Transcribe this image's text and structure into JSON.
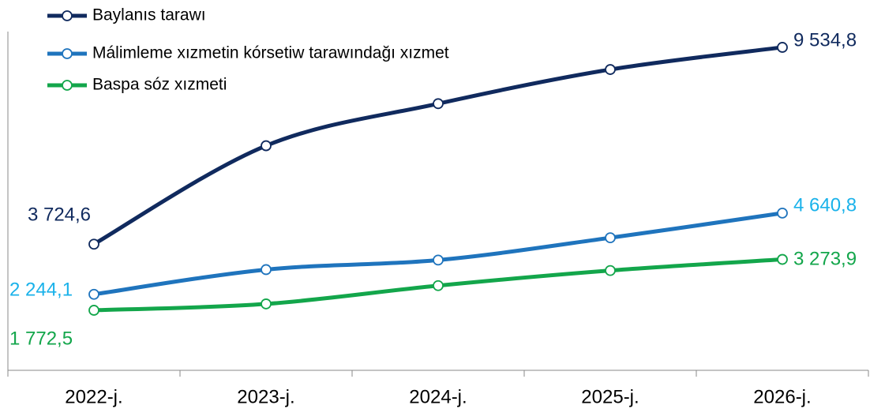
{
  "chart_data": {
    "type": "line",
    "categories": [
      "2022-j.",
      "2023-j.",
      "2024-j.",
      "2025-j.",
      "2026-j."
    ],
    "ylim": [
      0,
      10000
    ],
    "series": [
      {
        "name": "Baylanıs tarawı",
        "color": "#102a5e",
        "label_color": "#102a5e",
        "values": [
          3724.6,
          6630,
          7872,
          8880,
          9534.8
        ],
        "value_labels": [
          "3 724,6",
          null,
          null,
          null,
          "9 534,8"
        ]
      },
      {
        "name": "Málimleme xızmetin kórsetiw tarawındağı xızmet",
        "color": "#1f74bd",
        "label_color": "#1ab2ea",
        "values": [
          2244.1,
          2973,
          3255,
          3913,
          4640.8
        ],
        "value_labels": [
          "2 244,1",
          null,
          null,
          null,
          "4 640,8"
        ]
      },
      {
        "name": "Baspa sóz xızmeti",
        "color": "#13a64b",
        "label_color": "#13a64b",
        "values": [
          1772.5,
          1960,
          2500,
          2946,
          3273.9
        ],
        "value_labels": [
          "1 772,5",
          null,
          null,
          null,
          "3 273,9"
        ]
      }
    ]
  }
}
